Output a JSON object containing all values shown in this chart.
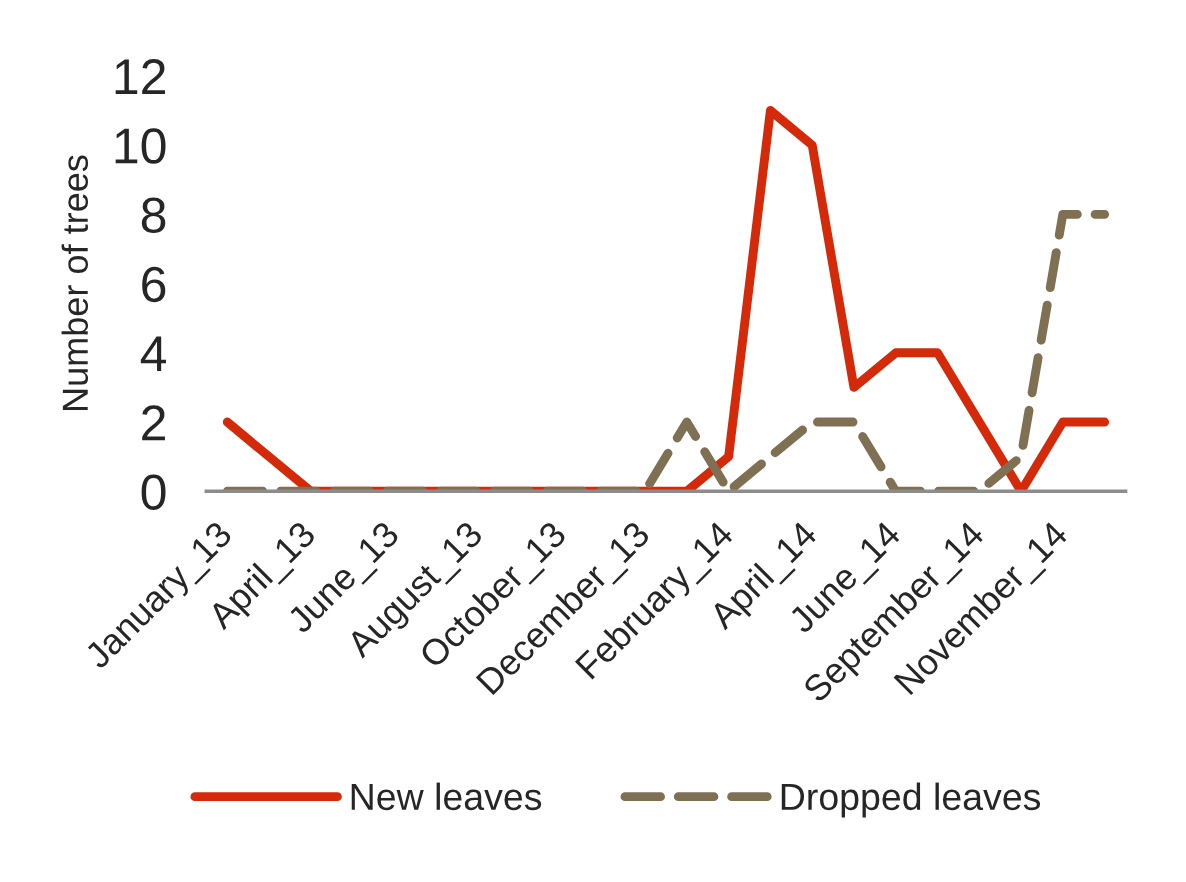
{
  "chart_data": {
    "type": "line",
    "ylabel": "Number of trees",
    "categories": [
      "January_13",
      null,
      "April_13",
      null,
      "June_13",
      null,
      "August_13",
      null,
      "October_13",
      null,
      "December_13",
      null,
      "February_14",
      null,
      "April_14",
      null,
      "June_14",
      null,
      "September_14",
      null,
      "November_14",
      null
    ],
    "series": [
      {
        "name": "New leaves",
        "color": "#d42a0a",
        "line_style": "solid",
        "values": [
          2,
          1,
          0,
          0,
          0,
          0,
          0,
          0,
          0,
          0,
          0,
          0,
          1,
          11,
          10,
          3,
          4,
          4,
          2,
          0,
          2,
          2
        ]
      },
      {
        "name": "Dropped leaves",
        "color": "#7f6f53",
        "line_style": "dashed",
        "values": [
          0,
          0,
          0,
          0,
          0,
          0,
          0,
          0,
          0,
          0,
          0,
          2,
          0,
          1,
          2,
          2,
          0,
          0,
          0,
          1,
          8,
          8
        ]
      }
    ],
    "ylim": [
      0,
      12
    ],
    "yticks": [
      0,
      2,
      4,
      6,
      8,
      10,
      12
    ],
    "legend": "bottom"
  }
}
